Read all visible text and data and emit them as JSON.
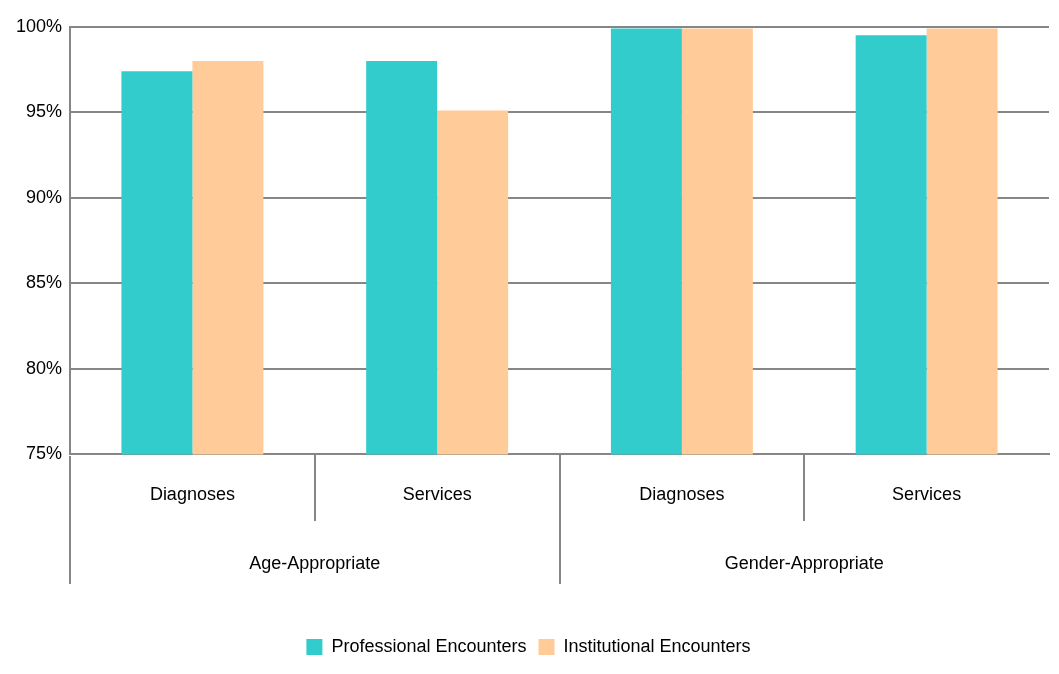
{
  "chart_data": {
    "type": "bar",
    "categories": [
      "Diagnoses",
      "Services",
      "Diagnoses",
      "Services"
    ],
    "series": [
      {
        "name": "Professional Encounters",
        "color": "#33cccc",
        "values": [
          97.4,
          98.0,
          99.9,
          99.5
        ]
      },
      {
        "name": "Institutional Encounters",
        "color": "#ffcc99",
        "values": [
          98.0,
          95.1,
          99.9,
          99.9
        ]
      }
    ],
    "ylim": [
      75,
      100
    ],
    "yticks": [
      {
        "value": 75,
        "label": "75%"
      },
      {
        "value": 80,
        "label": "80%"
      },
      {
        "value": 85,
        "label": "85%"
      },
      {
        "value": 90,
        "label": "90%"
      },
      {
        "value": 95,
        "label": "95%"
      },
      {
        "value": 100,
        "label": "100%"
      }
    ],
    "grid": "y",
    "legend": "bottom",
    "annotations": [
      "Age-Appropriate",
      "Gender-Appropriate"
    ]
  }
}
